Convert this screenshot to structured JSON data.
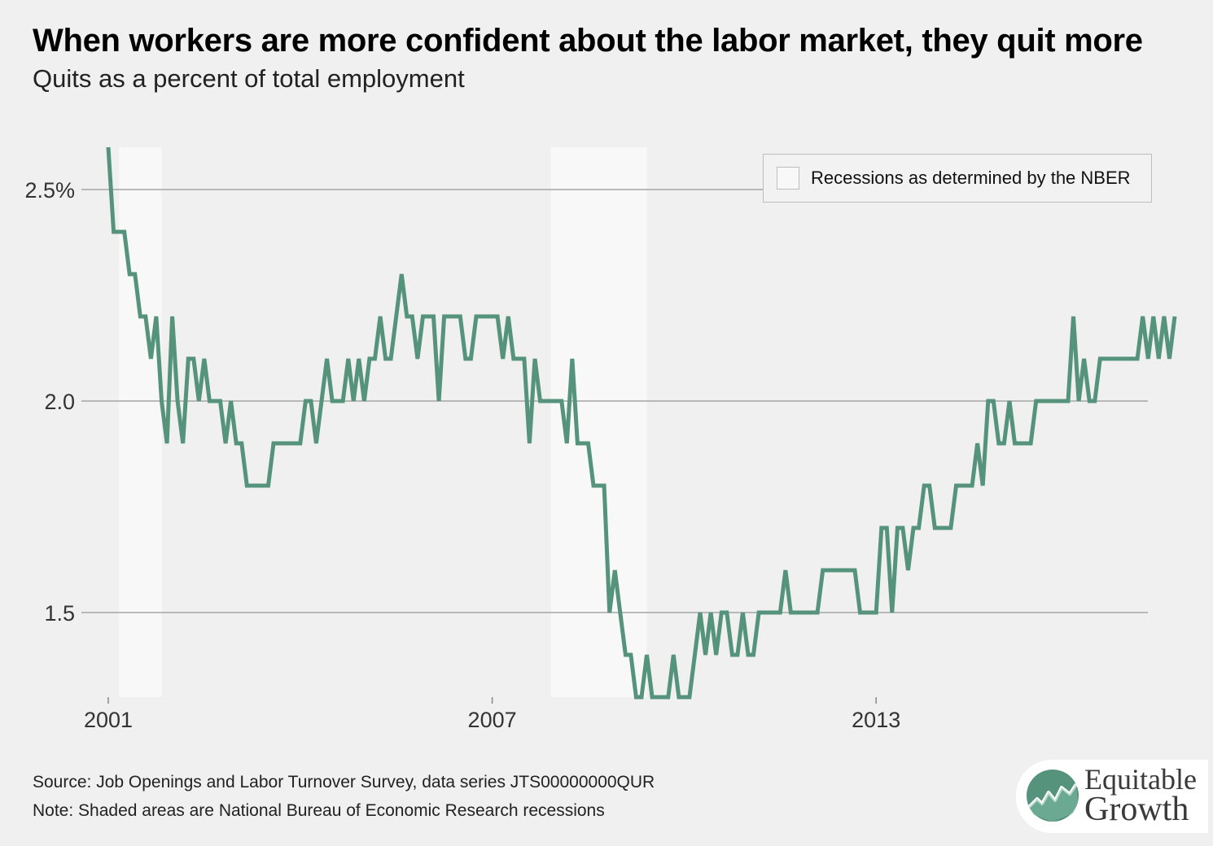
{
  "title": "When workers are more confident about the labor market, they quit more",
  "subtitle": "Quits as a percent of total employment",
  "legend": {
    "label": "Recessions as determined by the NBER"
  },
  "footnotes": {
    "source": "Source: Job Openings and Labor Turnover Survey, data series JTS00000000QUR",
    "note": "Note: Shaded areas are National Bureau of Economic Research recessions"
  },
  "logo": {
    "line1": "Equitable",
    "line2": "Growth"
  },
  "colors": {
    "line": "#55937d",
    "recession": "#f8f8f8",
    "grid": "#a5a5a5",
    "background": "#f0f0f0"
  },
  "chart_data": {
    "type": "line",
    "title": "When workers are more confident about the labor market, they quit more",
    "subtitle": "Quits as a percent of total employment",
    "ylim": [
      1.3,
      2.6
    ],
    "y_ticks": [
      {
        "value": 2.5,
        "label": "2.5%"
      },
      {
        "value": 2.0,
        "label": "2.0"
      },
      {
        "value": 1.5,
        "label": "1.5"
      }
    ],
    "x_ticks": [
      {
        "value": "2001-01",
        "label": "2001"
      },
      {
        "value": "2007-01",
        "label": "2007"
      },
      {
        "value": "2013-01",
        "label": "2013"
      }
    ],
    "grid": true,
    "legend_position": "top-right",
    "recessions": [
      {
        "start": "2001-03",
        "end": "2001-11"
      },
      {
        "start": "2007-12",
        "end": "2009-06"
      }
    ],
    "series": [
      {
        "start": "2001-01",
        "frequency": "monthly",
        "values": [
          2.6,
          2.4,
          2.4,
          2.4,
          2.3,
          2.3,
          2.2,
          2.2,
          2.1,
          2.2,
          2.0,
          1.9,
          2.2,
          2.0,
          1.9,
          2.1,
          2.1,
          2.0,
          2.1,
          2.0,
          2.0,
          2.0,
          1.9,
          2.0,
          1.9,
          1.9,
          1.8,
          1.8,
          1.8,
          1.8,
          1.8,
          1.9,
          1.9,
          1.9,
          1.9,
          1.9,
          1.9,
          2.0,
          2.0,
          1.9,
          2.0,
          2.1,
          2.0,
          2.0,
          2.0,
          2.1,
          2.0,
          2.1,
          2.0,
          2.1,
          2.1,
          2.2,
          2.1,
          2.1,
          2.2,
          2.3,
          2.2,
          2.2,
          2.1,
          2.2,
          2.2,
          2.2,
          2.0,
          2.2,
          2.2,
          2.2,
          2.2,
          2.1,
          2.1,
          2.2,
          2.2,
          2.2,
          2.2,
          2.2,
          2.1,
          2.2,
          2.1,
          2.1,
          2.1,
          1.9,
          2.1,
          2.0,
          2.0,
          2.0,
          2.0,
          2.0,
          1.9,
          2.1,
          1.9,
          1.9,
          1.9,
          1.8,
          1.8,
          1.8,
          1.5,
          1.6,
          1.5,
          1.4,
          1.4,
          1.3,
          1.3,
          1.4,
          1.3,
          1.3,
          1.3,
          1.3,
          1.4,
          1.3,
          1.3,
          1.3,
          1.4,
          1.5,
          1.4,
          1.5,
          1.4,
          1.5,
          1.5,
          1.4,
          1.4,
          1.5,
          1.4,
          1.4,
          1.5,
          1.5,
          1.5,
          1.5,
          1.5,
          1.6,
          1.5,
          1.5,
          1.5,
          1.5,
          1.5,
          1.5,
          1.6,
          1.6,
          1.6,
          1.6,
          1.6,
          1.6,
          1.6,
          1.5,
          1.5,
          1.5,
          1.5,
          1.7,
          1.7,
          1.5,
          1.7,
          1.7,
          1.6,
          1.7,
          1.7,
          1.8,
          1.8,
          1.7,
          1.7,
          1.7,
          1.7,
          1.8,
          1.8,
          1.8,
          1.8,
          1.9,
          1.8,
          2.0,
          2.0,
          1.9,
          1.9,
          2.0,
          1.9,
          1.9,
          1.9,
          1.9,
          2.0,
          2.0,
          2.0,
          2.0,
          2.0,
          2.0,
          2.0,
          2.2,
          2.0,
          2.1,
          2.0,
          2.0,
          2.1,
          2.1,
          2.1,
          2.1,
          2.1,
          2.1,
          2.1,
          2.1,
          2.2,
          2.1,
          2.2,
          2.1,
          2.2,
          2.1,
          2.2
        ]
      }
    ]
  }
}
